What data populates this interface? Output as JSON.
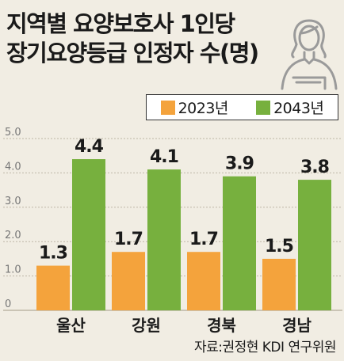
{
  "title_lines": [
    "지역별 요양보호사 1인당",
    "장기요양등급 인정자 수(명)"
  ],
  "source": "자료:권정현 KDI 연구위원",
  "illustration_icon": "caregiver-person-icon",
  "colors": {
    "series_2023": "#f4a33c",
    "series_2043": "#77b03e",
    "background": "#f1ede3",
    "grid": "#bdb6a6",
    "axis_label": "#777777"
  },
  "chart_data": {
    "type": "bar",
    "title": "지역별 요양보호사 1인당 장기요양등급 인정자 수(명)",
    "xlabel": "",
    "ylabel": "",
    "categories": [
      "울산",
      "강원",
      "경북",
      "경남"
    ],
    "series": [
      {
        "name": "2023년",
        "values": [
          1.3,
          1.7,
          1.7,
          1.5
        ]
      },
      {
        "name": "2043년",
        "values": [
          4.4,
          4.1,
          3.9,
          3.8
        ]
      }
    ],
    "value_labels": [
      [
        "1.3",
        "1.7",
        "1.7",
        "1.5"
      ],
      [
        "4.4",
        "4.1",
        "3.9",
        "3.8"
      ]
    ],
    "ylim": [
      0,
      5
    ],
    "yticks": [
      "0",
      "1.0",
      "2.0",
      "3.0",
      "4.0",
      "5.0"
    ],
    "grid": true,
    "legend_position": "top-right"
  }
}
